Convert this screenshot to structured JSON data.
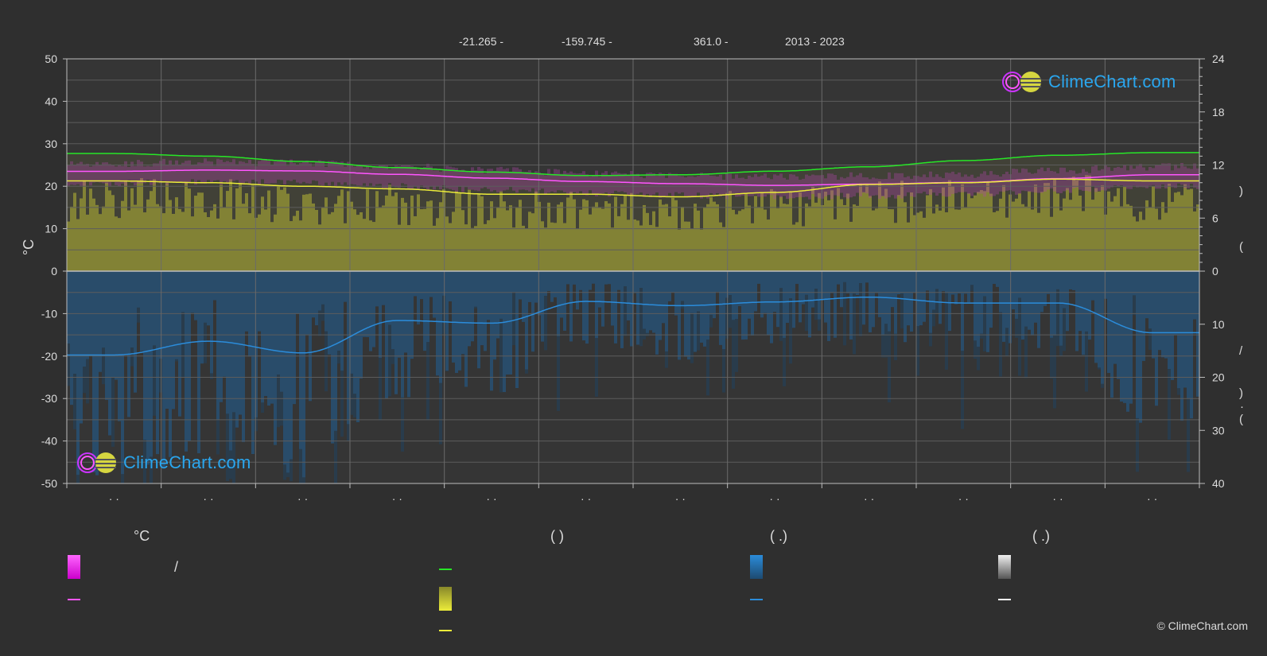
{
  "header": {
    "lat": "-21.265 -",
    "lon": "-159.745 -",
    "elev": "361.0 -",
    "years": "2013 - 2023"
  },
  "logo_text": "ClimeChart.com",
  "copyright": "© ClimeChart.com",
  "right_axis_glyphs": [
    ")",
    "(",
    "/",
    ")",
    "·",
    "("
  ],
  "legend": {
    "col1_head": "°C",
    "col1_slash": "/",
    "col2_head": "(          )",
    "col3_head": "(   .)",
    "col4_head": "(   .)"
  },
  "colors": {
    "background": "#2f2f2f",
    "daylight": "#27e627",
    "sunshine": "#ecec3a",
    "temp_mean": "#ff55ff",
    "temp_range": "#dd22dd",
    "rain": "#2b8cda",
    "snow": "#cccccc"
  },
  "chart_data": {
    "type": "line",
    "categories": [
      "· ·",
      "· ·",
      "· ·",
      "· ·",
      "· ·",
      "· ·",
      "· ·",
      "· ·",
      "· ·",
      "· ·",
      "· ·",
      "· ·"
    ],
    "y_left": {
      "label": "°C",
      "ylim": [
        -50,
        50
      ],
      "ticks": [
        50,
        40,
        30,
        20,
        10,
        0,
        -10,
        -20,
        -30,
        -40,
        -50
      ]
    },
    "y_right_top": {
      "ylim": [
        0,
        24
      ],
      "ticks": [
        24,
        18,
        12,
        6,
        0
      ]
    },
    "y_right_bottom": {
      "ylim": [
        0,
        40
      ],
      "ticks": [
        0,
        10,
        20,
        30,
        40
      ]
    },
    "grid": true,
    "series": [
      {
        "key": "daylight",
        "axis": "hours",
        "values": [
          13.3,
          13.0,
          12.4,
          11.7,
          11.2,
          10.8,
          10.9,
          11.3,
          11.8,
          12.5,
          13.1,
          13.4
        ]
      },
      {
        "key": "sunshine",
        "axis": "hours",
        "values": [
          10.2,
          10.0,
          9.6,
          9.3,
          8.7,
          8.7,
          8.4,
          8.9,
          9.8,
          10.0,
          10.4,
          10.2
        ]
      },
      {
        "key": "temp_mean",
        "axis": "temp",
        "values": [
          23.5,
          23.8,
          23.6,
          22.8,
          21.9,
          21.1,
          20.6,
          20.2,
          20.5,
          20.9,
          21.8,
          22.7
        ]
      },
      {
        "key": "precip",
        "axis": "mm",
        "values": [
          15.8,
          13.2,
          15.4,
          9.3,
          9.8,
          5.7,
          6.5,
          5.8,
          4.9,
          6.0,
          6.0,
          11.6
        ]
      }
    ]
  }
}
